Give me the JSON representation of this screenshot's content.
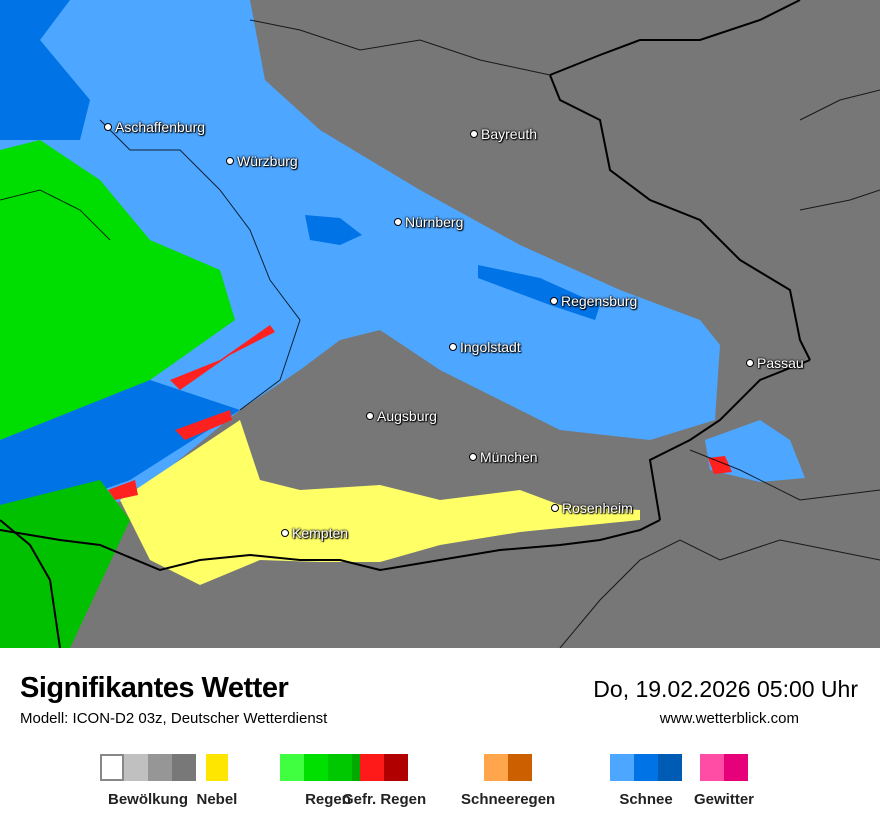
{
  "map": {
    "cities": [
      {
        "name": "Aschaffenburg"
      },
      {
        "name": "Würzburg"
      },
      {
        "name": "Bayreuth"
      },
      {
        "name": "Nürnberg"
      },
      {
        "name": "Regensburg"
      },
      {
        "name": "Ingolstadt"
      },
      {
        "name": "Passau"
      },
      {
        "name": "Augsburg"
      },
      {
        "name": "München"
      },
      {
        "name": "Rosenheim"
      },
      {
        "name": "Kempten"
      }
    ],
    "colors": {
      "background": "#777777",
      "schnee_light": "#4da6ff",
      "schnee_dark": "#0073e6",
      "regen": "#00dd00",
      "nebel": "#ffff66",
      "gefr_regen": "#ff2020"
    }
  },
  "footer": {
    "title": "Signifikantes Wetter",
    "model": "Modell: ICON-D2 03z, Deutscher Wetterdienst",
    "datetime": "Do, 19.02.2026 05:00 Uhr",
    "website": "www.wetterblick.com"
  },
  "legend": [
    {
      "label": "Bewölkung",
      "colors": [
        "#ffffff",
        "#c0c0c0",
        "#969696",
        "#787878"
      ]
    },
    {
      "label": "Nebel",
      "colors": [
        "#ffe600"
      ]
    },
    {
      "label": "Regen",
      "colors": [
        "#40ff40",
        "#00e000",
        "#00c800",
        "#00aa00"
      ]
    },
    {
      "label": "Gefr. Regen",
      "colors": [
        "#ff1a1a",
        "#b00000"
      ]
    },
    {
      "label": "Schneeregen",
      "colors": [
        "#ffa64d",
        "#cc5f00"
      ]
    },
    {
      "label": "Schnee",
      "colors": [
        "#4da6ff",
        "#0073e6",
        "#005bb5"
      ]
    },
    {
      "label": "Gewitter",
      "colors": [
        "#ff4da6",
        "#e6007a"
      ]
    }
  ]
}
